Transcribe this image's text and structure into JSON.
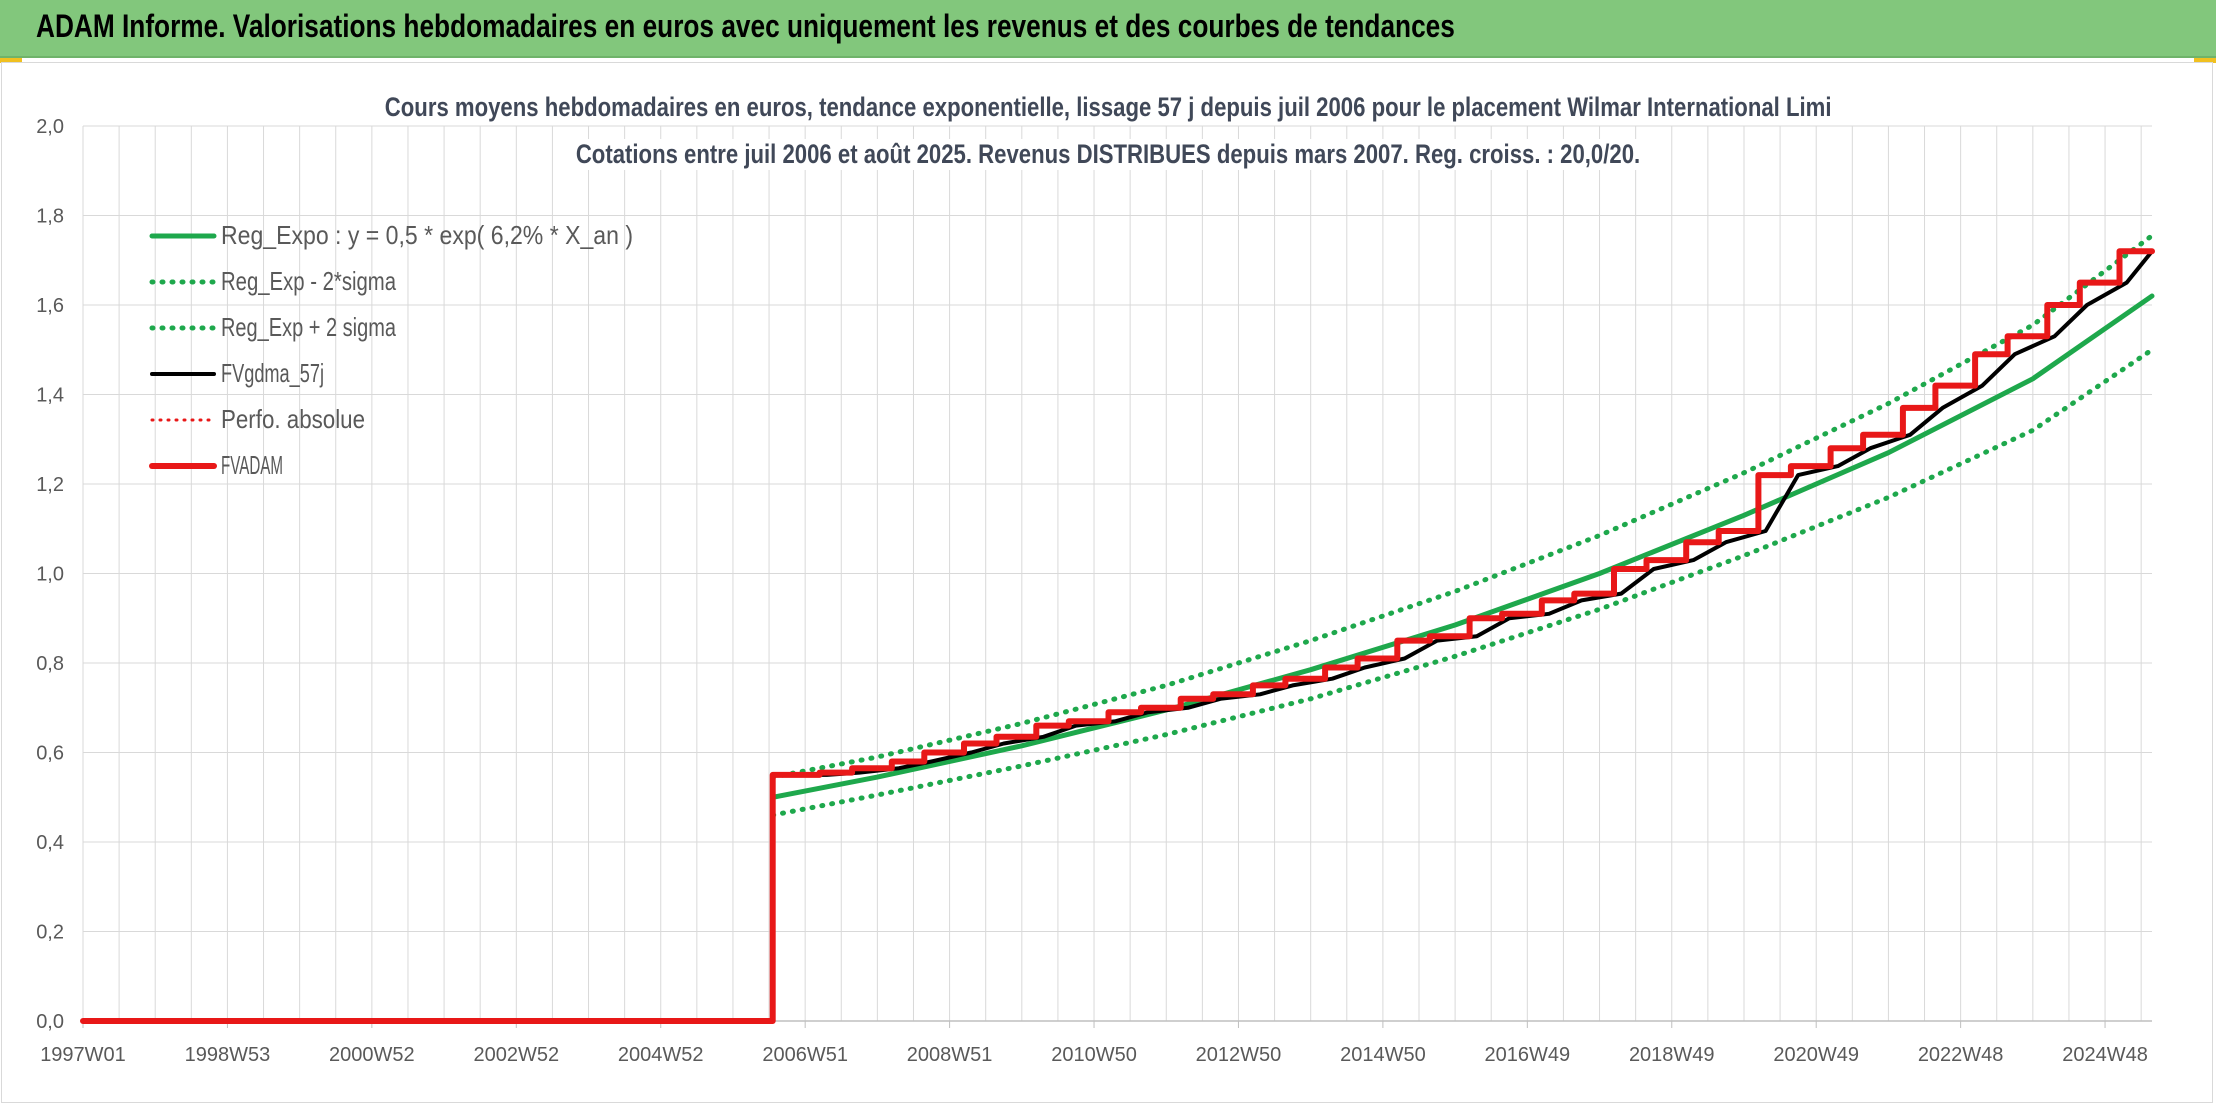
{
  "header": {
    "title": "ADAM Informe. Valorisations hebdomadaires en euros avec uniquement les revenus et des courbes de tendances"
  },
  "colors": {
    "header_bg": "#82c77c",
    "reg_green": "#1ea84c",
    "fvgdma": "#000000",
    "fvadam": "#e81818",
    "grid": "#d9d9d9",
    "axis_text": "#595959"
  },
  "chart_data": {
    "type": "line",
    "title": "Cours moyens hebdomadaires en euros, tendance exponentielle, lissage 57 j depuis juil 2006 pour le placement Wilmar International Limi",
    "subtitle": "Cotations entre juil 2006 et août 2025. Revenus DISTRIBUES depuis mars 2007. Reg. croiss. : 20,0/20.",
    "xlabel": "",
    "ylabel": "",
    "x_range": [
      1997.0,
      2025.65
    ],
    "ylim": [
      0,
      2
    ],
    "y_ticks": [
      "0,0",
      "0,2",
      "0,4",
      "0,6",
      "0,8",
      "1,0",
      "1,2",
      "1,4",
      "1,6",
      "1,8",
      "2,0"
    ],
    "x_ticks": [
      {
        "label": "1997W01",
        "x": 1997.0
      },
      {
        "label": "1998W53",
        "x": 1999.0
      },
      {
        "label": "2000W52",
        "x": 2001.0
      },
      {
        "label": "2002W52",
        "x": 2003.0
      },
      {
        "label": "2004W52",
        "x": 2005.0
      },
      {
        "label": "2006W51",
        "x": 2007.0
      },
      {
        "label": "2008W51",
        "x": 2009.0
      },
      {
        "label": "2010W50",
        "x": 2011.0
      },
      {
        "label": "2012W50",
        "x": 2013.0
      },
      {
        "label": "2014W50",
        "x": 2015.0
      },
      {
        "label": "2016W49",
        "x": 2017.0
      },
      {
        "label": "2018W49",
        "x": 2019.0
      },
      {
        "label": "2020W49",
        "x": 2021.0
      },
      {
        "label": "2022W48",
        "x": 2023.0
      },
      {
        "label": "2024W48",
        "x": 2025.0
      }
    ],
    "grid": true,
    "legend_position": "top-left",
    "legend": [
      {
        "name": "Reg_Expo : y = 0,5 * exp( 6,2% *  X_an )",
        "style": "solid-green"
      },
      {
        "name": "Reg_Exp - 2*sigma",
        "style": "dotted-green"
      },
      {
        "name": "Reg_Exp + 2 sigma",
        "style": "dotted-green"
      },
      {
        "name": "FVgdma_57j",
        "style": "solid-black"
      },
      {
        "name": "Perfo. absolue",
        "style": "dotted-red"
      },
      {
        "name": "FVADAM",
        "style": "solid-red"
      }
    ],
    "series": [
      {
        "name": "Reg_Expo : y = 0,5 * exp( 6,2% *  X_an )",
        "x": [
          2006.55,
          2008.0,
          2010.0,
          2012.0,
          2014.0,
          2016.0,
          2018.0,
          2020.0,
          2022.0,
          2024.0,
          2025.65
        ],
        "values": [
          0.5,
          0.545,
          0.615,
          0.695,
          0.785,
          0.885,
          1.0,
          1.13,
          1.27,
          1.435,
          1.62
        ]
      },
      {
        "name": "Reg_Exp - 2*sigma",
        "x": [
          2006.55,
          2008.0,
          2010.0,
          2012.0,
          2014.0,
          2016.0,
          2018.0,
          2020.0,
          2022.0,
          2024.0,
          2025.65
        ],
        "values": [
          0.46,
          0.505,
          0.57,
          0.64,
          0.72,
          0.815,
          0.92,
          1.04,
          1.17,
          1.32,
          1.5
        ]
      },
      {
        "name": "Reg_Exp + 2 sigma",
        "x": [
          2006.55,
          2008.0,
          2010.0,
          2012.0,
          2014.0,
          2016.0,
          2018.0,
          2020.0,
          2022.0,
          2024.0,
          2025.65
        ],
        "values": [
          0.545,
          0.59,
          0.665,
          0.75,
          0.85,
          0.96,
          1.085,
          1.225,
          1.38,
          1.555,
          1.755
        ]
      },
      {
        "name": "FVgdma_57j",
        "x": [
          2006.55,
          2007.3,
          2007.75,
          2008.3,
          2008.75,
          2009.3,
          2009.75,
          2010.3,
          2010.75,
          2011.3,
          2011.75,
          2012.3,
          2012.75,
          2013.3,
          2013.75,
          2014.3,
          2014.75,
          2015.3,
          2015.75,
          2016.3,
          2016.75,
          2017.3,
          2017.75,
          2018.3,
          2018.75,
          2019.3,
          2019.75,
          2020.3,
          2020.75,
          2021.3,
          2021.75,
          2022.3,
          2022.75,
          2023.3,
          2023.75,
          2024.3,
          2024.75,
          2025.3,
          2025.65
        ],
        "values": [
          0.55,
          0.55,
          0.555,
          0.565,
          0.58,
          0.6,
          0.62,
          0.635,
          0.66,
          0.67,
          0.69,
          0.7,
          0.72,
          0.73,
          0.75,
          0.765,
          0.79,
          0.81,
          0.85,
          0.86,
          0.9,
          0.91,
          0.94,
          0.955,
          1.01,
          1.03,
          1.07,
          1.095,
          1.22,
          1.24,
          1.28,
          1.31,
          1.37,
          1.42,
          1.49,
          1.53,
          1.6,
          1.65,
          1.72
        ]
      },
      {
        "name": "FVADAM",
        "x": [
          1997.0,
          2006.55,
          2006.55,
          2007.2,
          2007.2,
          2007.65,
          2007.65,
          2008.2,
          2008.2,
          2008.65,
          2008.65,
          2009.2,
          2009.2,
          2009.65,
          2009.65,
          2010.2,
          2010.2,
          2010.65,
          2010.65,
          2011.2,
          2011.2,
          2011.65,
          2011.65,
          2012.2,
          2012.2,
          2012.65,
          2012.65,
          2013.2,
          2013.2,
          2013.65,
          2013.65,
          2014.2,
          2014.2,
          2014.65,
          2014.65,
          2015.2,
          2015.2,
          2015.65,
          2015.65,
          2016.2,
          2016.2,
          2016.65,
          2016.65,
          2017.2,
          2017.2,
          2017.65,
          2017.65,
          2018.2,
          2018.2,
          2018.65,
          2018.65,
          2019.2,
          2019.2,
          2019.65,
          2019.65,
          2020.2,
          2020.2,
          2020.65,
          2020.65,
          2021.2,
          2021.2,
          2021.65,
          2021.65,
          2022.2,
          2022.2,
          2022.65,
          2022.65,
          2023.2,
          2023.2,
          2023.65,
          2023.65,
          2024.2,
          2024.2,
          2024.65,
          2024.65,
          2025.2,
          2025.2,
          2025.65
        ],
        "values": [
          0.0,
          0.0,
          0.55,
          0.55,
          0.555,
          0.555,
          0.565,
          0.565,
          0.58,
          0.58,
          0.6,
          0.6,
          0.62,
          0.62,
          0.635,
          0.635,
          0.66,
          0.66,
          0.67,
          0.67,
          0.69,
          0.69,
          0.7,
          0.7,
          0.72,
          0.72,
          0.73,
          0.73,
          0.75,
          0.75,
          0.765,
          0.765,
          0.79,
          0.79,
          0.81,
          0.81,
          0.85,
          0.85,
          0.86,
          0.86,
          0.9,
          0.9,
          0.91,
          0.91,
          0.94,
          0.94,
          0.955,
          0.955,
          1.01,
          1.01,
          1.03,
          1.03,
          1.07,
          1.07,
          1.095,
          1.095,
          1.22,
          1.22,
          1.24,
          1.24,
          1.28,
          1.28,
          1.31,
          1.31,
          1.37,
          1.37,
          1.42,
          1.42,
          1.49,
          1.49,
          1.53,
          1.53,
          1.6,
          1.6,
          1.65,
          1.65,
          1.72,
          1.72
        ]
      }
    ]
  }
}
